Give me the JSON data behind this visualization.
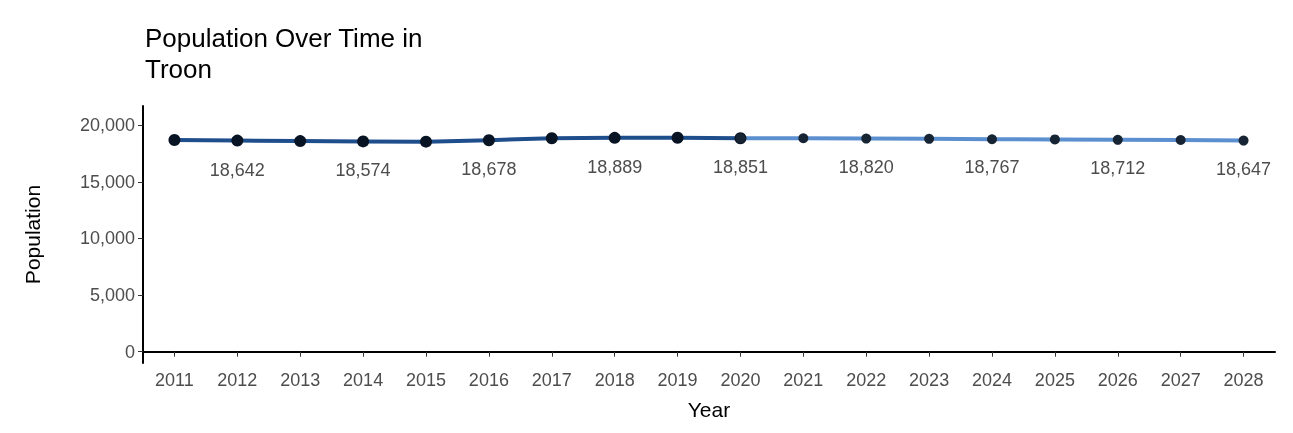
{
  "chart_data": {
    "type": "line",
    "title": "Population Over Time in Troon",
    "xlabel": "Year",
    "ylabel": "Population",
    "categories": [
      "2011",
      "2012",
      "2013",
      "2014",
      "2015",
      "2016",
      "2017",
      "2018",
      "2019",
      "2020",
      "2021",
      "2022",
      "2023",
      "2024",
      "2025",
      "2026",
      "2027",
      "2028"
    ],
    "series": [
      {
        "color": "#1f4e8c",
        "values": [
          18700,
          18642,
          18600,
          18574,
          18550,
          18678,
          18850,
          18889,
          18900,
          18851,
          null,
          null,
          null,
          null,
          null,
          null,
          null,
          null
        ],
        "value_labels": [
          null,
          "18,642",
          null,
          "18,574",
          null,
          "18,678",
          null,
          "18,889",
          null,
          "18,851",
          null,
          null,
          null,
          null,
          null,
          null,
          null,
          null
        ]
      },
      {
        "color": "#5b8fd0",
        "values": [
          null,
          null,
          null,
          null,
          null,
          null,
          null,
          null,
          null,
          18851,
          18850,
          18820,
          18800,
          18767,
          18750,
          18712,
          18700,
          18647
        ],
        "value_labels": [
          null,
          null,
          null,
          null,
          null,
          null,
          null,
          null,
          null,
          null,
          null,
          "18,820",
          null,
          "18,767",
          null,
          "18,712",
          null,
          "18,647"
        ]
      }
    ],
    "ylim": [
      -1000,
      21700
    ],
    "yticks": [
      {
        "value": 0,
        "label": "0"
      },
      {
        "value": 5000,
        "label": "5,000"
      },
      {
        "value": 10000,
        "label": "10,000"
      },
      {
        "value": 15000,
        "label": "15,000"
      },
      {
        "value": 20000,
        "label": "20,000"
      }
    ],
    "grid": false,
    "marker": "circle",
    "line_style": "solid"
  }
}
